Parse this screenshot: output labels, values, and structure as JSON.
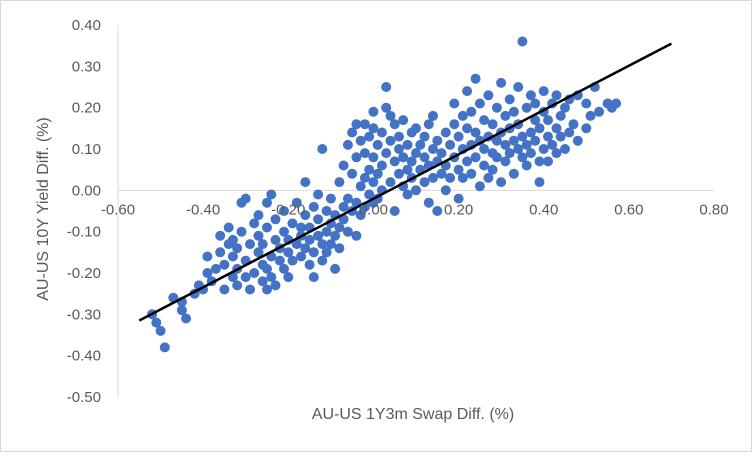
{
  "chart_data": {
    "type": "scatter",
    "title": "",
    "xlabel": "AU-US 1Y3m Swap Diff. (%)",
    "ylabel": "AU-US 10Y Yield Diff. (%)",
    "xlim": [
      -0.6,
      0.8
    ],
    "ylim": [
      -0.5,
      0.4
    ],
    "x_ticks": [
      -0.6,
      -0.4,
      -0.2,
      0.0,
      0.2,
      0.4,
      0.6,
      0.8
    ],
    "y_ticks": [
      -0.5,
      -0.4,
      -0.3,
      -0.2,
      -0.1,
      0.0,
      0.1,
      0.2,
      0.3,
      0.4
    ],
    "x_tick_labels": [
      "-0.60",
      "-0.40",
      "-0.20",
      "0.00",
      "0.20",
      "0.40",
      "0.60",
      "0.80"
    ],
    "y_tick_labels": [
      "-0.50",
      "-0.40",
      "-0.30",
      "-0.20",
      "-0.10",
      "0.00",
      "0.10",
      "0.20",
      "0.30",
      "0.40"
    ],
    "grid": false,
    "legend": "none",
    "marker_color": "#4472c4",
    "trendline_color": "#000000",
    "trendline": {
      "x": [
        -0.55,
        0.7
      ],
      "y": [
        -0.315,
        0.355
      ]
    },
    "series": [
      {
        "points": [
          [
            -0.52,
            -0.3
          ],
          [
            -0.51,
            -0.32
          ],
          [
            -0.5,
            -0.34
          ],
          [
            -0.49,
            -0.38
          ],
          [
            -0.47,
            -0.26
          ],
          [
            -0.45,
            -0.27
          ],
          [
            -0.45,
            -0.29
          ],
          [
            -0.44,
            -0.31
          ],
          [
            -0.42,
            -0.25
          ],
          [
            -0.41,
            -0.23
          ],
          [
            -0.4,
            -0.24
          ],
          [
            -0.39,
            -0.2
          ],
          [
            -0.39,
            -0.16
          ],
          [
            -0.38,
            -0.22
          ],
          [
            -0.37,
            -0.19
          ],
          [
            -0.36,
            -0.15
          ],
          [
            -0.36,
            -0.11
          ],
          [
            -0.35,
            -0.24
          ],
          [
            -0.35,
            -0.18
          ],
          [
            -0.34,
            -0.13
          ],
          [
            -0.34,
            -0.09
          ],
          [
            -0.33,
            -0.21
          ],
          [
            -0.33,
            -0.16
          ],
          [
            -0.33,
            -0.12
          ],
          [
            -0.32,
            -0.23
          ],
          [
            -0.32,
            -0.19
          ],
          [
            -0.32,
            -0.14
          ],
          [
            -0.31,
            -0.1
          ],
          [
            -0.31,
            -0.03
          ],
          [
            -0.3,
            -0.02
          ],
          [
            -0.3,
            -0.17
          ],
          [
            -0.3,
            -0.21
          ],
          [
            -0.29,
            -0.24
          ],
          [
            -0.29,
            -0.13
          ],
          [
            -0.28,
            -0.08
          ],
          [
            -0.28,
            -0.2
          ],
          [
            -0.27,
            -0.15
          ],
          [
            -0.27,
            -0.11
          ],
          [
            -0.27,
            -0.06
          ],
          [
            -0.26,
            -0.22
          ],
          [
            -0.26,
            -0.18
          ],
          [
            -0.26,
            -0.13
          ],
          [
            -0.25,
            -0.24
          ],
          [
            -0.25,
            -0.19
          ],
          [
            -0.25,
            -0.09
          ],
          [
            -0.25,
            -0.03
          ],
          [
            -0.24,
            -0.01
          ],
          [
            -0.24,
            -0.16
          ],
          [
            -0.24,
            -0.21
          ],
          [
            -0.23,
            -0.12
          ],
          [
            -0.23,
            -0.07
          ],
          [
            -0.23,
            -0.23
          ],
          [
            -0.22,
            -0.17
          ],
          [
            -0.22,
            -0.14
          ],
          [
            -0.21,
            -0.19
          ],
          [
            -0.21,
            -0.1
          ],
          [
            -0.21,
            -0.05
          ],
          [
            -0.2,
            -0.15
          ],
          [
            -0.2,
            -0.21
          ],
          [
            -0.2,
            -0.12
          ],
          [
            -0.19,
            -0.08
          ],
          [
            -0.19,
            -0.17
          ],
          [
            -0.18,
            -0.13
          ],
          [
            -0.18,
            -0.03
          ],
          [
            -0.17,
            -0.16
          ],
          [
            -0.17,
            -0.09
          ],
          [
            -0.17,
            -0.11
          ],
          [
            -0.16,
            -0.14
          ],
          [
            -0.16,
            -0.06
          ],
          [
            -0.16,
            0.02
          ],
          [
            -0.15,
            -0.12
          ],
          [
            -0.15,
            -0.18
          ],
          [
            -0.15,
            -0.09
          ],
          [
            -0.14,
            -0.04
          ],
          [
            -0.14,
            -0.15
          ],
          [
            -0.14,
            -0.21
          ],
          [
            -0.13,
            -0.11
          ],
          [
            -0.13,
            -0.07
          ],
          [
            -0.13,
            -0.01
          ],
          [
            -0.12,
            -0.13
          ],
          [
            -0.12,
            -0.17
          ],
          [
            -0.12,
            0.1
          ],
          [
            -0.11,
            -0.1
          ],
          [
            -0.11,
            -0.05
          ],
          [
            -0.11,
            -0.15
          ],
          [
            -0.1,
            -0.08
          ],
          [
            -0.1,
            -0.13
          ],
          [
            -0.1,
            -0.02
          ],
          [
            -0.09,
            -0.11
          ],
          [
            -0.09,
            -0.06
          ],
          [
            -0.09,
            -0.19
          ],
          [
            -0.08,
            -0.09
          ],
          [
            -0.08,
            -0.14
          ],
          [
            -0.08,
            0.02
          ],
          [
            -0.07,
            -0.07
          ],
          [
            -0.07,
            -0.04
          ],
          [
            -0.07,
            0.06
          ],
          [
            -0.06,
            -0.1
          ],
          [
            -0.06,
            -0.02
          ],
          [
            -0.06,
            0.11
          ],
          [
            -0.05,
            -0.05
          ],
          [
            -0.05,
            0.04
          ],
          [
            -0.05,
            0.14
          ],
          [
            -0.04,
            -0.11
          ],
          [
            -0.04,
            -0.03
          ],
          [
            -0.04,
            0.08
          ],
          [
            -0.04,
            0.16
          ],
          [
            -0.03,
            0.01
          ],
          [
            -0.03,
            -0.06
          ],
          [
            -0.03,
            0.12
          ],
          [
            -0.02,
            -0.04
          ],
          [
            -0.02,
            0.03
          ],
          [
            -0.02,
            0.09
          ],
          [
            -0.02,
            0.16
          ],
          [
            -0.01,
            0.05
          ],
          [
            -0.01,
            -0.01
          ],
          [
            -0.01,
            0.13
          ],
          [
            0.0,
            -0.03
          ],
          [
            0.0,
            0.02
          ],
          [
            0.0,
            0.08
          ],
          [
            0.0,
            0.15
          ],
          [
            0.0,
            0.19
          ],
          [
            0.01,
            0.04
          ],
          [
            0.01,
            -0.02
          ],
          [
            0.01,
            0.11
          ],
          [
            0.02,
            0.06
          ],
          [
            0.02,
            0.0
          ],
          [
            0.02,
            0.14
          ],
          [
            0.03,
            0.09
          ],
          [
            0.03,
            0.2
          ],
          [
            0.03,
            0.25
          ],
          [
            0.04,
            0.02
          ],
          [
            0.04,
            0.12
          ],
          [
            0.04,
            0.18
          ],
          [
            0.05,
            -0.05
          ],
          [
            0.05,
            0.07
          ],
          [
            0.05,
            0.16
          ],
          [
            0.06,
            0.1
          ],
          [
            0.06,
            0.04
          ],
          [
            0.06,
            0.13
          ],
          [
            0.07,
            0.01
          ],
          [
            0.07,
            0.08
          ],
          [
            0.07,
            0.17
          ],
          [
            0.08,
            0.05
          ],
          [
            0.08,
            0.11
          ],
          [
            0.08,
            -0.01
          ],
          [
            0.09,
            0.07
          ],
          [
            0.09,
            0.14
          ],
          [
            0.09,
            0.03
          ],
          [
            0.1,
            0.09
          ],
          [
            0.1,
            0.0
          ],
          [
            0.1,
            0.15
          ],
          [
            0.11,
            0.05
          ],
          [
            0.11,
            0.11
          ],
          [
            0.12,
            0.02
          ],
          [
            0.12,
            0.08
          ],
          [
            0.12,
            0.13
          ],
          [
            0.13,
            -0.03
          ],
          [
            0.13,
            0.06
          ],
          [
            0.13,
            0.16
          ],
          [
            0.14,
            0.1
          ],
          [
            0.14,
            0.03
          ],
          [
            0.14,
            0.18
          ],
          [
            0.15,
            0.07
          ],
          [
            0.15,
            -0.05
          ],
          [
            0.15,
            0.12
          ],
          [
            0.16,
            0.04
          ],
          [
            0.16,
            0.09
          ],
          [
            0.17,
            0.0
          ],
          [
            0.17,
            0.14
          ],
          [
            0.17,
            0.06
          ],
          [
            0.18,
            0.11
          ],
          [
            0.18,
            0.03
          ],
          [
            0.19,
            0.16
          ],
          [
            0.19,
            0.08
          ],
          [
            0.19,
            0.21
          ],
          [
            0.2,
            0.05
          ],
          [
            0.2,
            0.13
          ],
          [
            0.2,
            -0.02
          ],
          [
            0.21,
            0.1
          ],
          [
            0.21,
            0.18
          ],
          [
            0.21,
            0.03
          ],
          [
            0.22,
            0.07
          ],
          [
            0.22,
            0.15
          ],
          [
            0.22,
            0.24
          ],
          [
            0.23,
            0.11
          ],
          [
            0.23,
            0.04
          ],
          [
            0.23,
            0.19
          ],
          [
            0.24,
            0.08
          ],
          [
            0.24,
            0.14
          ],
          [
            0.24,
            0.27
          ],
          [
            0.25,
            0.01
          ],
          [
            0.25,
            0.12
          ],
          [
            0.25,
            0.21
          ],
          [
            0.26,
            0.06
          ],
          [
            0.26,
            0.17
          ],
          [
            0.26,
            0.1
          ],
          [
            0.27,
            0.13
          ],
          [
            0.27,
            0.03
          ],
          [
            0.27,
            0.23
          ],
          [
            0.28,
            0.09
          ],
          [
            0.28,
            0.16
          ],
          [
            0.28,
            0.05
          ],
          [
            0.29,
            0.12
          ],
          [
            0.29,
            0.2
          ],
          [
            0.29,
            0.08
          ],
          [
            0.3,
            0.14
          ],
          [
            0.3,
            0.26
          ],
          [
            0.3,
            0.02
          ],
          [
            0.31,
            0.11
          ],
          [
            0.31,
            0.18
          ],
          [
            0.31,
            0.07
          ],
          [
            0.32,
            0.15
          ],
          [
            0.32,
            0.22
          ],
          [
            0.32,
            0.09
          ],
          [
            0.33,
            0.12
          ],
          [
            0.33,
            0.04
          ],
          [
            0.33,
            0.19
          ],
          [
            0.34,
            0.1
          ],
          [
            0.34,
            0.16
          ],
          [
            0.34,
            0.25
          ],
          [
            0.35,
            0.08
          ],
          [
            0.35,
            0.13
          ],
          [
            0.35,
            0.36
          ],
          [
            0.36,
            0.11
          ],
          [
            0.36,
            0.2
          ],
          [
            0.36,
            0.06
          ],
          [
            0.37,
            0.14
          ],
          [
            0.37,
            0.23
          ],
          [
            0.37,
            0.09
          ],
          [
            0.38,
            0.17
          ],
          [
            0.38,
            0.12
          ],
          [
            0.38,
            0.21
          ],
          [
            0.39,
            0.07
          ],
          [
            0.39,
            0.15
          ],
          [
            0.39,
            0.02
          ],
          [
            0.4,
            0.1
          ],
          [
            0.4,
            0.19
          ],
          [
            0.4,
            0.24
          ],
          [
            0.41,
            0.13
          ],
          [
            0.41,
            0.07
          ],
          [
            0.41,
            0.17
          ],
          [
            0.42,
            0.11
          ],
          [
            0.42,
            0.21
          ],
          [
            0.43,
            0.15
          ],
          [
            0.43,
            0.09
          ],
          [
            0.43,
            0.23
          ],
          [
            0.44,
            0.13
          ],
          [
            0.44,
            0.18
          ],
          [
            0.45,
            0.1
          ],
          [
            0.45,
            0.2
          ],
          [
            0.46,
            0.14
          ],
          [
            0.46,
            0.22
          ],
          [
            0.47,
            0.16
          ],
          [
            0.48,
            0.12
          ],
          [
            0.48,
            0.23
          ],
          [
            0.5,
            0.15
          ],
          [
            0.5,
            0.21
          ],
          [
            0.51,
            0.18
          ],
          [
            0.52,
            0.25
          ],
          [
            0.53,
            0.19
          ],
          [
            0.55,
            0.21
          ],
          [
            0.56,
            0.2
          ],
          [
            0.57,
            0.21
          ]
        ]
      }
    ]
  }
}
